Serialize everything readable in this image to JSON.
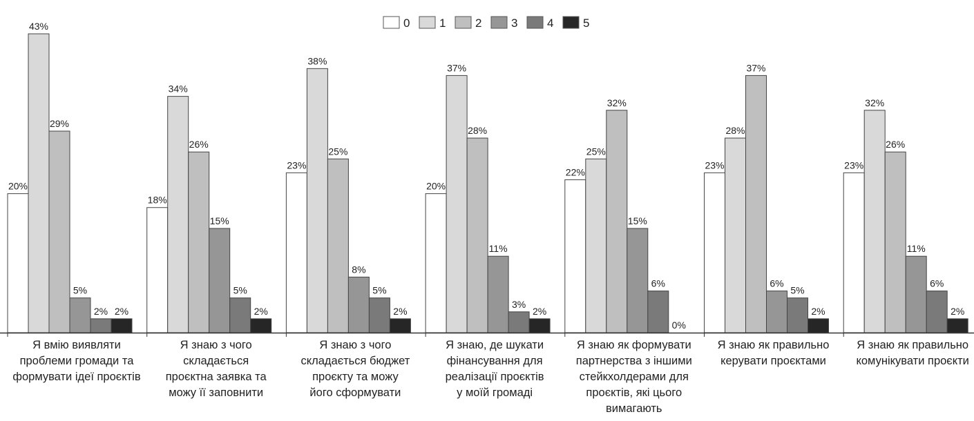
{
  "chart_data": {
    "type": "bar",
    "title": "",
    "xlabel": "",
    "ylabel": "",
    "ylim": [
      0,
      45
    ],
    "grid": false,
    "legend_position": "top-center",
    "value_suffix": "%",
    "categories": [
      [
        "Я вмію виявляти",
        "проблеми громади та",
        "формувати ідеї проєктів"
      ],
      [
        "Я знаю з чого",
        "складається",
        "проєктна заявка та",
        "можу її заповнити"
      ],
      [
        "Я знаю з чого",
        "складається бюджет",
        "проєкту та можу",
        "його сформувати"
      ],
      [
        "Я знаю, де шукати",
        "фінансування для",
        "реалізації проєктів",
        "у моїй громаді"
      ],
      [
        "Я знаю як формувати",
        "партнерства з іншими",
        "стейкхолдерами для",
        "проєктів, які цього",
        "вимагають"
      ],
      [
        "Я знаю як правильно",
        "керувати проєктами"
      ],
      [
        "Я знаю як правильно",
        "комунікувати проєкти"
      ]
    ],
    "series": [
      {
        "name": "0",
        "color": "#ffffff",
        "values": [
          20,
          18,
          23,
          20,
          22,
          23,
          23
        ]
      },
      {
        "name": "1",
        "color": "#d9d9d9",
        "values": [
          43,
          34,
          38,
          37,
          25,
          28,
          32
        ]
      },
      {
        "name": "2",
        "color": "#bfbfbf",
        "values": [
          29,
          26,
          25,
          28,
          32,
          37,
          26
        ]
      },
      {
        "name": "3",
        "color": "#969696",
        "values": [
          5,
          15,
          8,
          11,
          15,
          6,
          11
        ]
      },
      {
        "name": "4",
        "color": "#7a7a7a",
        "values": [
          2,
          5,
          5,
          3,
          6,
          5,
          6
        ]
      },
      {
        "name": "5",
        "color": "#262626",
        "values": [
          2,
          2,
          2,
          2,
          0,
          2,
          2
        ]
      }
    ]
  }
}
